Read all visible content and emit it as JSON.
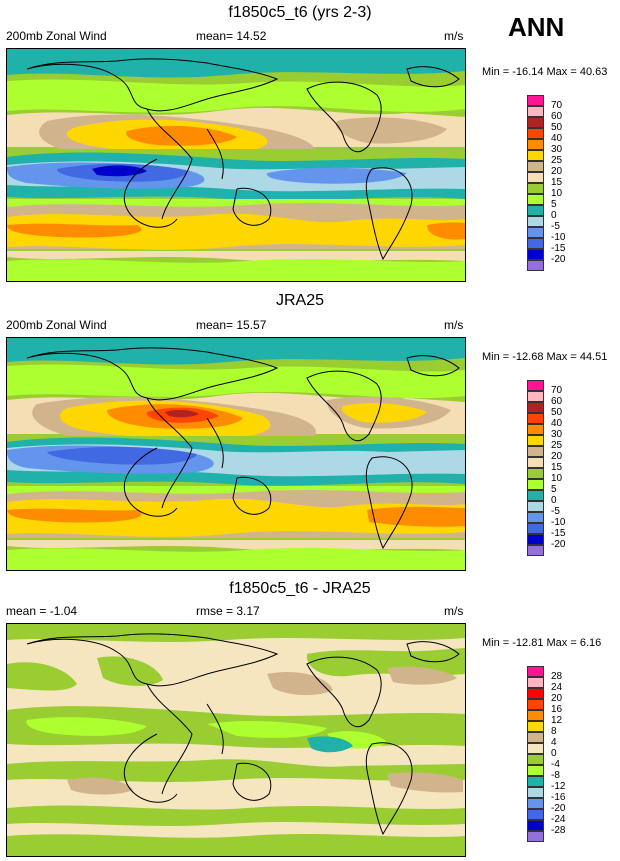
{
  "season": "ANN",
  "panels": [
    {
      "title": "f1850c5_t6 (yrs 2-3)",
      "left_label": "200mb Zonal Wind",
      "mean_label": "mean=  14.52",
      "units": "m/s",
      "minmax": "Min = -16.14 Max =  40.63",
      "colorbar_labels": [
        "70",
        "60",
        "50",
        "40",
        "30",
        "25",
        "20",
        "15",
        "10",
        "5",
        "0",
        "-5",
        "-10",
        "-15",
        "-20"
      ]
    },
    {
      "title": "JRA25",
      "left_label": "200mb Zonal Wind",
      "mean_label": "mean=  15.57",
      "units": "m/s",
      "minmax": "Min = -12.68 Max =  44.51",
      "colorbar_labels": [
        "70",
        "60",
        "50",
        "40",
        "30",
        "25",
        "20",
        "15",
        "10",
        "5",
        "0",
        "-5",
        "-10",
        "-15",
        "-20"
      ]
    },
    {
      "title": "f1850c5_t6 - JRA25",
      "left_label": "mean =  -1.04",
      "mean_label": "rmse =   3.17",
      "units": "m/s",
      "minmax": "Min = -12.81 Max =   6.16",
      "colorbar_labels": [
        "28",
        "24",
        "20",
        "16",
        "12",
        "8",
        "4",
        "0",
        "-4",
        "-8",
        "-12",
        "-16",
        "-20",
        "-24",
        "-28"
      ]
    }
  ],
  "colors": {
    "wind_scale": [
      "#ff1493",
      "#ffb6c1",
      "#b22222",
      "#ff4500",
      "#ff8c00",
      "#ffd700",
      "#d2b48c",
      "#f5deb3",
      "#9acd32",
      "#adff2f",
      "#20b2aa",
      "#add8e6",
      "#6495ed",
      "#4169e1",
      "#0000cd",
      "#9370db"
    ],
    "diff_scale": [
      "#ff1493",
      "#ffb6c1",
      "#ff0000",
      "#ff4500",
      "#ff8c00",
      "#ffd700",
      "#d2b48c",
      "#f5e6c0",
      "#9acd32",
      "#adff2f",
      "#20b2aa",
      "#add8e6",
      "#6495ed",
      "#4169e1",
      "#0000cd",
      "#9370db"
    ]
  },
  "chart_data": [
    {
      "type": "heatmap",
      "title": "f1850c5_t6 (yrs 2-3)",
      "field": "200mb Zonal Wind",
      "units": "m/s",
      "mean": 14.52,
      "min": -16.14,
      "max": 40.63,
      "contour_levels": [
        -20,
        -15,
        -10,
        -5,
        0,
        5,
        10,
        15,
        20,
        25,
        30,
        40,
        50,
        60,
        70
      ]
    },
    {
      "type": "heatmap",
      "title": "JRA25",
      "field": "200mb Zonal Wind",
      "units": "m/s",
      "mean": 15.57,
      "min": -12.68,
      "max": 44.51,
      "contour_levels": [
        -20,
        -15,
        -10,
        -5,
        0,
        5,
        10,
        15,
        20,
        25,
        30,
        40,
        50,
        60,
        70
      ]
    },
    {
      "type": "heatmap",
      "title": "f1850c5_t6 - JRA25",
      "units": "m/s",
      "mean": -1.04,
      "rmse": 3.17,
      "min": -12.81,
      "max": 6.16,
      "contour_levels": [
        -28,
        -24,
        -20,
        -16,
        -12,
        -8,
        -4,
        0,
        4,
        8,
        12,
        16,
        20,
        24,
        28
      ]
    }
  ]
}
